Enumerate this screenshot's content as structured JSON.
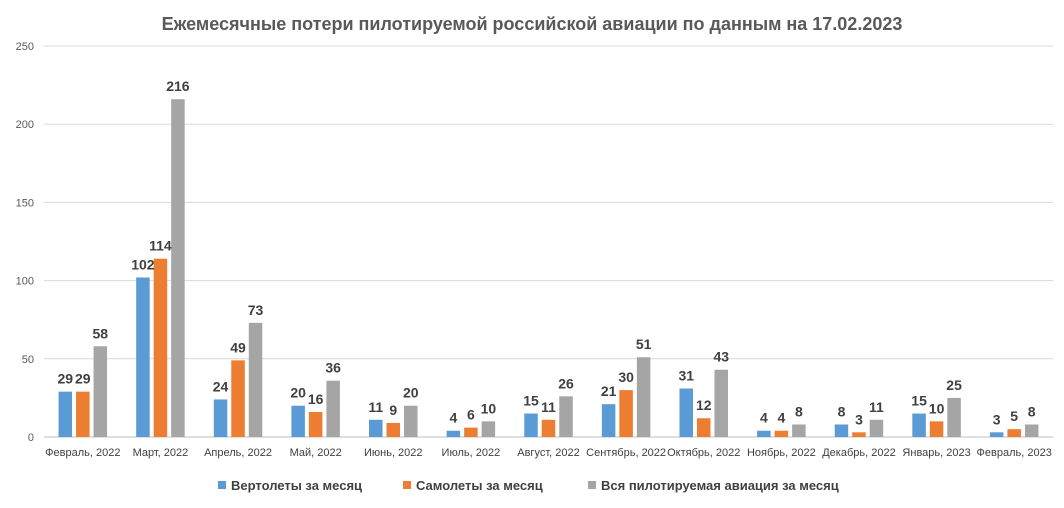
{
  "chart_data": {
    "type": "bar",
    "title": "Ежемесячные потери пилотируемой российской авиации по данным на 17.02.2023",
    "categories": [
      "Февраль, 2022",
      "Март, 2022",
      "Апрель, 2022",
      "Май, 2022",
      "Июнь, 2022",
      "Июль, 2022",
      "Август, 2022",
      "Сентябрь, 2022",
      "Октябрь, 2022",
      "Ноябрь, 2022",
      "Декабрь, 2022",
      "Январь, 2023",
      "Февраль, 2023"
    ],
    "series": [
      {
        "name": "Вертолеты за месяц",
        "color": "#5b9bd5",
        "values": [
          29,
          102,
          24,
          20,
          11,
          4,
          15,
          21,
          31,
          4,
          8,
          15,
          3
        ]
      },
      {
        "name": "Самолеты за месяц",
        "color": "#ed7d31",
        "values": [
          29,
          114,
          49,
          16,
          9,
          6,
          11,
          30,
          12,
          4,
          3,
          10,
          5
        ]
      },
      {
        "name": "Вся пилотируемая авиация за месяц",
        "color": "#a5a5a5",
        "values": [
          58,
          216,
          73,
          36,
          20,
          10,
          26,
          51,
          43,
          8,
          11,
          25,
          8
        ]
      }
    ],
    "yticks": [
      0,
      50,
      100,
      150,
      200,
      250
    ],
    "ylim": [
      0,
      250
    ],
    "grid": true,
    "legend_position": "bottom"
  }
}
